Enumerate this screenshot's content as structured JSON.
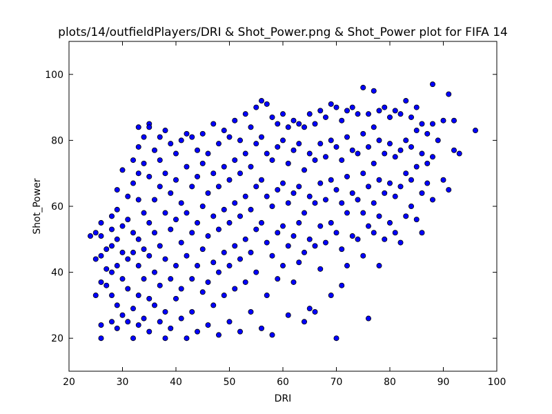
{
  "chart_data": {
    "type": "scatter",
    "title": "plots/14/outfieldPlayers/DRI & Shot_Power.png & Shot_Power plot for FIFA 14",
    "xlabel": "DRI",
    "ylabel": "Shot_Power",
    "xlim": [
      20,
      100
    ],
    "ylim": [
      10,
      110
    ],
    "xticks": [
      20,
      30,
      40,
      50,
      60,
      70,
      80,
      90,
      100
    ],
    "yticks": [
      20,
      40,
      60,
      80,
      100
    ],
    "grid": false,
    "marker_color": "#0000ff",
    "marker_edge_color": "#000000",
    "points": [
      [
        24,
        51
      ],
      [
        25,
        52
      ],
      [
        25,
        44
      ],
      [
        25,
        33
      ],
      [
        26,
        55
      ],
      [
        26,
        51
      ],
      [
        26,
        45
      ],
      [
        26,
        37
      ],
      [
        26,
        24
      ],
      [
        26,
        20
      ],
      [
        27,
        47
      ],
      [
        27,
        41
      ],
      [
        27,
        36
      ],
      [
        28,
        57
      ],
      [
        28,
        53
      ],
      [
        28,
        48
      ],
      [
        28,
        40
      ],
      [
        28,
        33
      ],
      [
        28,
        25
      ],
      [
        29,
        65
      ],
      [
        29,
        59
      ],
      [
        29,
        50
      ],
      [
        29,
        42
      ],
      [
        29,
        30
      ],
      [
        29,
        23
      ],
      [
        30,
        71
      ],
      [
        30,
        54
      ],
      [
        30,
        46
      ],
      [
        30,
        38
      ],
      [
        30,
        27
      ],
      [
        31,
        63
      ],
      [
        31,
        56
      ],
      [
        31,
        44
      ],
      [
        31,
        35
      ],
      [
        31,
        25
      ],
      [
        32,
        74
      ],
      [
        32,
        67
      ],
      [
        32,
        52
      ],
      [
        32,
        46
      ],
      [
        32,
        29
      ],
      [
        32,
        20
      ],
      [
        33,
        84
      ],
      [
        33,
        78
      ],
      [
        33,
        70
      ],
      [
        33,
        62
      ],
      [
        33,
        50
      ],
      [
        33,
        42
      ],
      [
        33,
        33
      ],
      [
        33,
        24
      ],
      [
        34,
        81
      ],
      [
        34,
        73
      ],
      [
        34,
        58
      ],
      [
        34,
        47
      ],
      [
        34,
        38
      ],
      [
        34,
        26
      ],
      [
        35,
        85
      ],
      [
        35,
        84
      ],
      [
        35,
        69
      ],
      [
        35,
        55
      ],
      [
        35,
        45
      ],
      [
        35,
        32
      ],
      [
        35,
        22
      ],
      [
        36,
        77
      ],
      [
        36,
        62
      ],
      [
        36,
        52
      ],
      [
        36,
        40
      ],
      [
        36,
        30
      ],
      [
        37,
        81
      ],
      [
        37,
        74
      ],
      [
        37,
        66
      ],
      [
        37,
        48
      ],
      [
        37,
        36
      ],
      [
        37,
        25
      ],
      [
        38,
        83
      ],
      [
        38,
        70
      ],
      [
        38,
        58
      ],
      [
        38,
        44
      ],
      [
        38,
        28
      ],
      [
        38,
        20
      ],
      [
        39,
        79
      ],
      [
        39,
        64
      ],
      [
        39,
        53
      ],
      [
        39,
        38
      ],
      [
        39,
        23
      ],
      [
        40,
        76
      ],
      [
        40,
        68
      ],
      [
        40,
        56
      ],
      [
        40,
        42
      ],
      [
        40,
        32
      ],
      [
        41,
        80
      ],
      [
        41,
        61
      ],
      [
        41,
        49
      ],
      [
        41,
        35
      ],
      [
        41,
        26
      ],
      [
        42,
        82
      ],
      [
        42,
        72
      ],
      [
        42,
        58
      ],
      [
        42,
        45
      ],
      [
        42,
        20
      ],
      [
        43,
        81
      ],
      [
        43,
        66
      ],
      [
        43,
        52
      ],
      [
        43,
        38
      ],
      [
        43,
        28
      ],
      [
        44,
        77
      ],
      [
        44,
        69
      ],
      [
        44,
        55
      ],
      [
        44,
        42
      ],
      [
        44,
        22
      ],
      [
        45,
        82
      ],
      [
        45,
        73
      ],
      [
        45,
        60
      ],
      [
        45,
        47
      ],
      [
        45,
        34
      ],
      [
        46,
        76
      ],
      [
        46,
        64
      ],
      [
        46,
        51
      ],
      [
        46,
        37
      ],
      [
        46,
        24
      ],
      [
        47,
        85
      ],
      [
        47,
        70
      ],
      [
        47,
        57
      ],
      [
        47,
        43
      ],
      [
        47,
        30
      ],
      [
        48,
        79
      ],
      [
        48,
        66
      ],
      [
        48,
        53
      ],
      [
        48,
        40
      ],
      [
        48,
        21
      ],
      [
        49,
        83
      ],
      [
        49,
        72
      ],
      [
        49,
        59
      ],
      [
        49,
        46
      ],
      [
        49,
        33
      ],
      [
        50,
        81
      ],
      [
        50,
        68
      ],
      [
        50,
        55
      ],
      [
        50,
        42
      ],
      [
        50,
        25
      ],
      [
        51,
        86
      ],
      [
        51,
        74
      ],
      [
        51,
        61
      ],
      [
        51,
        48
      ],
      [
        51,
        35
      ],
      [
        52,
        80
      ],
      [
        52,
        70
      ],
      [
        52,
        57
      ],
      [
        52,
        44
      ],
      [
        52,
        22
      ],
      [
        53,
        88
      ],
      [
        53,
        76
      ],
      [
        53,
        63
      ],
      [
        53,
        50
      ],
      [
        53,
        37
      ],
      [
        54,
        84
      ],
      [
        54,
        72
      ],
      [
        54,
        59
      ],
      [
        54,
        46
      ],
      [
        54,
        28
      ],
      [
        55,
        90
      ],
      [
        55,
        79
      ],
      [
        55,
        66
      ],
      [
        55,
        53
      ],
      [
        55,
        40
      ],
      [
        56,
        92
      ],
      [
        56,
        81
      ],
      [
        56,
        68
      ],
      [
        56,
        55
      ],
      [
        56,
        23
      ],
      [
        57,
        91
      ],
      [
        57,
        76
      ],
      [
        57,
        63
      ],
      [
        57,
        49
      ],
      [
        57,
        33
      ],
      [
        58,
        87
      ],
      [
        58,
        74
      ],
      [
        58,
        60
      ],
      [
        58,
        45
      ],
      [
        58,
        21
      ],
      [
        59,
        85
      ],
      [
        59,
        78
      ],
      [
        59,
        65
      ],
      [
        59,
        52
      ],
      [
        59,
        38
      ],
      [
        60,
        88
      ],
      [
        60,
        80
      ],
      [
        60,
        67
      ],
      [
        60,
        54
      ],
      [
        60,
        42
      ],
      [
        61,
        84
      ],
      [
        61,
        73
      ],
      [
        61,
        61
      ],
      [
        61,
        48
      ],
      [
        61,
        27
      ],
      [
        62,
        86
      ],
      [
        62,
        77
      ],
      [
        62,
        64
      ],
      [
        62,
        51
      ],
      [
        62,
        37
      ],
      [
        63,
        85
      ],
      [
        63,
        79
      ],
      [
        63,
        66
      ],
      [
        63,
        55
      ],
      [
        63,
        43
      ],
      [
        64,
        84
      ],
      [
        64,
        71
      ],
      [
        64,
        58
      ],
      [
        64,
        46
      ],
      [
        64,
        25
      ],
      [
        65,
        88
      ],
      [
        65,
        76
      ],
      [
        65,
        63
      ],
      [
        65,
        50
      ],
      [
        65,
        29
      ],
      [
        66,
        85
      ],
      [
        66,
        74
      ],
      [
        66,
        61
      ],
      [
        66,
        48
      ],
      [
        66,
        28
      ],
      [
        67,
        89
      ],
      [
        67,
        79
      ],
      [
        67,
        67
      ],
      [
        67,
        54
      ],
      [
        67,
        41
      ],
      [
        68,
        87
      ],
      [
        68,
        75
      ],
      [
        68,
        62
      ],
      [
        68,
        49
      ],
      [
        69,
        91
      ],
      [
        69,
        80
      ],
      [
        69,
        68
      ],
      [
        69,
        55
      ],
      [
        69,
        33
      ],
      [
        70,
        90
      ],
      [
        70,
        78
      ],
      [
        70,
        65
      ],
      [
        70,
        52
      ],
      [
        70,
        20
      ],
      [
        71,
        86
      ],
      [
        71,
        74
      ],
      [
        71,
        61
      ],
      [
        71,
        47
      ],
      [
        71,
        36
      ],
      [
        72,
        89
      ],
      [
        72,
        81
      ],
      [
        72,
        69
      ],
      [
        72,
        58
      ],
      [
        72,
        42
      ],
      [
        73,
        90
      ],
      [
        73,
        77
      ],
      [
        73,
        64
      ],
      [
        73,
        51
      ],
      [
        74,
        88
      ],
      [
        74,
        76
      ],
      [
        74,
        62
      ],
      [
        74,
        50
      ],
      [
        75,
        96
      ],
      [
        75,
        82
      ],
      [
        75,
        70
      ],
      [
        75,
        58
      ],
      [
        75,
        45
      ],
      [
        76,
        88
      ],
      [
        76,
        78
      ],
      [
        76,
        66
      ],
      [
        76,
        54
      ],
      [
        76,
        26
      ],
      [
        77,
        95
      ],
      [
        77,
        84
      ],
      [
        77,
        73
      ],
      [
        77,
        61
      ],
      [
        77,
        52
      ],
      [
        78,
        89
      ],
      [
        78,
        80
      ],
      [
        78,
        68
      ],
      [
        78,
        57
      ],
      [
        78,
        42
      ],
      [
        79,
        90
      ],
      [
        79,
        76
      ],
      [
        79,
        64
      ],
      [
        79,
        50
      ],
      [
        80,
        87
      ],
      [
        80,
        79
      ],
      [
        80,
        67
      ],
      [
        80,
        55
      ],
      [
        81,
        89
      ],
      [
        81,
        75
      ],
      [
        81,
        63
      ],
      [
        81,
        52
      ],
      [
        82,
        88
      ],
      [
        82,
        77
      ],
      [
        82,
        66
      ],
      [
        82,
        49
      ],
      [
        83,
        92
      ],
      [
        83,
        80
      ],
      [
        83,
        70
      ],
      [
        83,
        57
      ],
      [
        84,
        87
      ],
      [
        84,
        78
      ],
      [
        84,
        68
      ],
      [
        84,
        60
      ],
      [
        85,
        90
      ],
      [
        85,
        83
      ],
      [
        85,
        72
      ],
      [
        85,
        56
      ],
      [
        86,
        85
      ],
      [
        86,
        76
      ],
      [
        86,
        64
      ],
      [
        86,
        52
      ],
      [
        87,
        82
      ],
      [
        87,
        73
      ],
      [
        87,
        67
      ],
      [
        88,
        97
      ],
      [
        88,
        85
      ],
      [
        88,
        75
      ],
      [
        88,
        62
      ],
      [
        89,
        80
      ],
      [
        90,
        86
      ],
      [
        90,
        68
      ],
      [
        91,
        94
      ],
      [
        91,
        65
      ],
      [
        92,
        86
      ],
      [
        92,
        77
      ],
      [
        93,
        76
      ],
      [
        96,
        83
      ]
    ]
  }
}
